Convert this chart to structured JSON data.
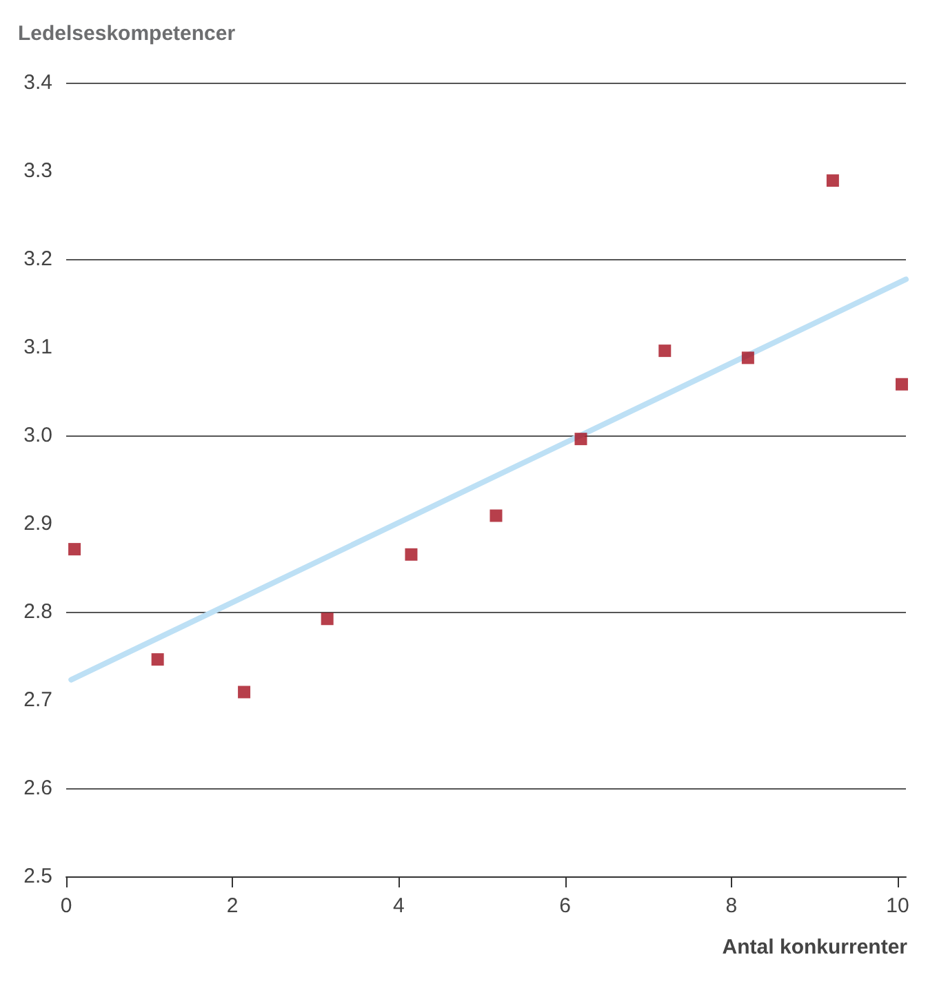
{
  "chart_data": {
    "type": "scatter",
    "ylabel": "Ledelseskompetencer",
    "xlabel": "Antal konkurrenter",
    "xlim": [
      0,
      10.1
    ],
    "xticks": [
      0,
      2,
      4,
      6,
      8,
      10
    ],
    "ylim": [
      2.5,
      3.4
    ],
    "yticks": [
      2.5,
      2.6,
      2.7,
      2.8,
      2.9,
      {
        "value": 3,
        "label": "3.0"
      },
      3.1,
      3.2,
      3.3,
      3.4
    ],
    "grid": "y",
    "marker": "square",
    "series": [
      {
        "color": "#a50f1e",
        "x": [
          0.1,
          1.1,
          2.14,
          3.14,
          4.15,
          5.17,
          6.19,
          7.2,
          8.2,
          9.22,
          10.05
        ],
        "values": [
          2.871,
          2.746,
          2.709,
          2.792,
          2.865,
          2.909,
          2.996,
          3.096,
          3.088,
          3.289,
          3.058
        ]
      },
      {
        "type": "line",
        "color": "#bde0f5",
        "x": [
          0.06,
          10.1
        ],
        "values": [
          2.723,
          3.177
        ],
        "marker": "none",
        "line_style": "solid"
      }
    ]
  }
}
